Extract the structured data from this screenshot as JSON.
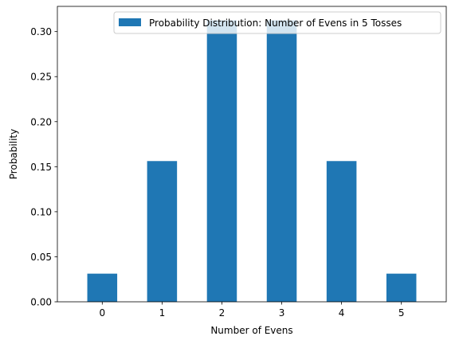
{
  "chart_data": {
    "type": "bar",
    "title": "",
    "xlabel": "Number of Evens",
    "ylabel": "Probability",
    "categories": [
      "0",
      "1",
      "2",
      "3",
      "4",
      "5"
    ],
    "series": [
      {
        "name": "Probability Distribution: Number of Evens in 5 Tosses",
        "values": [
          0.03125,
          0.15625,
          0.3125,
          0.3125,
          0.15625,
          0.03125
        ],
        "color": "#1f77b4"
      }
    ],
    "ylim": [
      0,
      0.328
    ],
    "yticks": [
      0.0,
      0.05,
      0.1,
      0.15,
      0.2,
      0.25,
      0.3
    ],
    "ytick_labels": [
      "0.00",
      "0.05",
      "0.10",
      "0.15",
      "0.20",
      "0.25",
      "0.30"
    ],
    "grid": false,
    "legend_position": "top-right"
  }
}
